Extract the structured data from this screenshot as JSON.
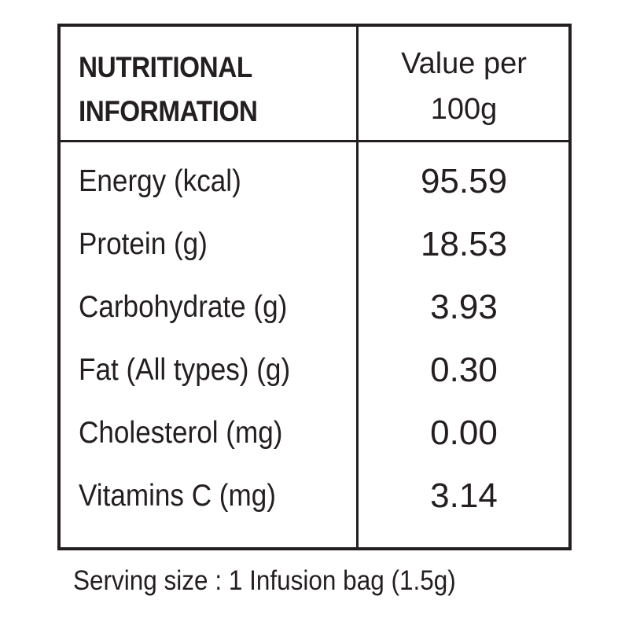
{
  "table": {
    "header_left_line1": "NUTRITIONAL",
    "header_left_line2": "INFORMATION",
    "header_right_line1": "Value per",
    "header_right_line2": "100g",
    "rows": [
      {
        "label": "Energy (kcal)",
        "value": "95.59"
      },
      {
        "label": "Protein (g)",
        "value": "18.53"
      },
      {
        "label": "Carbohydrate (g)",
        "value": "3.93"
      },
      {
        "label": "Fat (All types) (g)",
        "value": "0.30"
      },
      {
        "label": "Cholesterol (mg)",
        "value": "0.00"
      },
      {
        "label": "Vitamins C (mg)",
        "value": "3.14"
      }
    ]
  },
  "footer": {
    "serving_size": "Serving size : 1 Infusion bag (1.5g)"
  }
}
